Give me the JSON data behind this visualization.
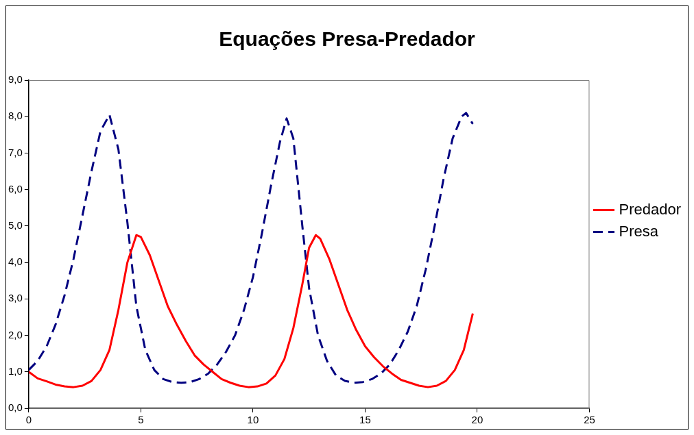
{
  "chart_data": {
    "type": "line",
    "title": "Equações Presa-Predador",
    "xlim": [
      0,
      25
    ],
    "xticks": [
      0,
      5,
      10,
      15,
      20,
      25
    ],
    "ylim": [
      0,
      9
    ],
    "yticks": [
      {
        "value": 0,
        "label": "0,0"
      },
      {
        "value": 1,
        "label": "1,0"
      },
      {
        "value": 2,
        "label": "2,0"
      },
      {
        "value": 3,
        "label": "3,0"
      },
      {
        "value": 4,
        "label": "4,0"
      },
      {
        "value": 5,
        "label": "5,0"
      },
      {
        "value": 6,
        "label": "6,0"
      },
      {
        "value": 7,
        "label": "7,0"
      },
      {
        "value": 8,
        "label": "8,0"
      },
      {
        "value": 9,
        "label": "9,0"
      }
    ],
    "grid": false,
    "legend": "right",
    "marker": "none",
    "series": [
      {
        "name": "Predador",
        "color": "#ff0000",
        "line_style": "solid",
        "x": [
          0,
          0.4,
          0.8,
          1.2,
          1.6,
          2.0,
          2.4,
          2.8,
          3.2,
          3.6,
          4.0,
          4.4,
          4.8,
          5.0,
          5.4,
          5.8,
          6.2,
          6.6,
          7.0,
          7.4,
          7.8,
          8.2,
          8.6,
          9.0,
          9.4,
          9.8,
          10.2,
          10.6,
          11.0,
          11.4,
          11.8,
          12.2,
          12.5,
          12.8,
          13.0,
          13.4,
          13.8,
          14.2,
          14.6,
          15.0,
          15.4,
          15.8,
          16.2,
          16.6,
          17.0,
          17.4,
          17.8,
          18.2,
          18.6,
          19.0,
          19.4,
          19.8
        ],
        "values": [
          1.0,
          0.82,
          0.74,
          0.65,
          0.6,
          0.58,
          0.62,
          0.75,
          1.05,
          1.6,
          2.7,
          4.0,
          4.75,
          4.7,
          4.2,
          3.5,
          2.8,
          2.3,
          1.85,
          1.45,
          1.2,
          1.0,
          0.8,
          0.7,
          0.62,
          0.58,
          0.6,
          0.68,
          0.9,
          1.35,
          2.2,
          3.4,
          4.4,
          4.75,
          4.65,
          4.1,
          3.4,
          2.7,
          2.15,
          1.7,
          1.4,
          1.15,
          0.95,
          0.78,
          0.7,
          0.62,
          0.58,
          0.62,
          0.75,
          1.05,
          1.6,
          2.6
        ]
      },
      {
        "name": "Presa",
        "color": "#000080",
        "line_style": "dashed",
        "x": [
          0,
          0.4,
          0.8,
          1.2,
          1.6,
          2.0,
          2.4,
          2.8,
          3.2,
          3.6,
          4.0,
          4.4,
          4.8,
          5.2,
          5.6,
          6.0,
          6.4,
          6.8,
          7.2,
          7.6,
          8.0,
          8.4,
          8.8,
          9.2,
          9.6,
          10.0,
          10.4,
          10.8,
          11.2,
          11.5,
          11.8,
          12.2,
          12.5,
          12.9,
          13.3,
          13.7,
          14.1,
          14.5,
          14.9,
          15.3,
          15.7,
          16.1,
          16.5,
          16.9,
          17.3,
          17.7,
          18.1,
          18.5,
          18.9,
          19.3,
          19.5,
          19.8
        ],
        "values": [
          1.05,
          1.3,
          1.7,
          2.3,
          3.1,
          4.1,
          5.3,
          6.5,
          7.6,
          8.05,
          7.1,
          5.1,
          2.8,
          1.6,
          1.05,
          0.8,
          0.72,
          0.7,
          0.72,
          0.8,
          0.95,
          1.2,
          1.55,
          2.0,
          2.7,
          3.6,
          4.8,
          6.1,
          7.3,
          7.95,
          7.4,
          5.0,
          3.3,
          2.0,
          1.3,
          0.9,
          0.75,
          0.7,
          0.72,
          0.8,
          0.95,
          1.2,
          1.6,
          2.1,
          2.8,
          3.8,
          5.0,
          6.3,
          7.4,
          8.0,
          8.1,
          7.8
        ]
      }
    ]
  }
}
